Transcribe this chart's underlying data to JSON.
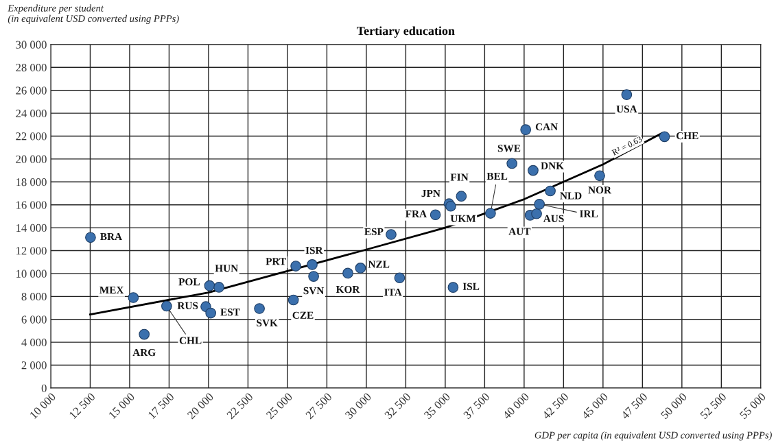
{
  "chart_data": {
    "type": "scatter",
    "title": "Tertiary education",
    "xlabel": "GDP per capita (in equivalent USD converted using PPPs)",
    "ylabel": "Expenditure per student\n(in equivalent USD converted using PPPs)",
    "series": [
      {
        "marker": "circle",
        "color": "#3b70ad",
        "x": [
          12520,
          15235,
          15924,
          17345,
          20065,
          20660,
          19830,
          20140,
          23225,
          25380,
          25530,
          26570,
          26660,
          28830,
          29630,
          31570,
          32110,
          35500,
          34380,
          35240,
          35350,
          36020,
          37870,
          39230,
          40100,
          40570,
          40380,
          40790,
          40970,
          41660,
          44790,
          46500,
          48900
        ],
        "values": [
          13150,
          7900,
          4690,
          7150,
          8940,
          8800,
          7110,
          6550,
          6940,
          7690,
          10650,
          10780,
          9750,
          10030,
          10480,
          13410,
          9620,
          8790,
          15130,
          16090,
          15880,
          16750,
          15260,
          19610,
          22560,
          19000,
          15090,
          15220,
          16050,
          17210,
          18540,
          25620,
          21950
        ]
      },
      {
        "type": "line",
        "marker": "none",
        "color": "#000000",
        "x": [
          12500,
          20000,
          30000,
          35000,
          40000,
          45000,
          48700
        ],
        "values": [
          6430,
          8340,
          12090,
          14000,
          16490,
          19530,
          22230
        ]
      }
    ],
    "annotations": [
      {
        "text": "BRA",
        "x": 12520,
        "y": 13150
      },
      {
        "text": "MEX",
        "x": 15235,
        "y": 7900
      },
      {
        "text": "ARG",
        "x": 15924,
        "y": 4690
      },
      {
        "text": "CHL",
        "x": 17345,
        "y": 7150
      },
      {
        "text": "POL",
        "x": 20065,
        "y": 8940
      },
      {
        "text": "HUN",
        "x": 20660,
        "y": 8800
      },
      {
        "text": "RUS",
        "x": 19830,
        "y": 7110
      },
      {
        "text": "EST",
        "x": 20140,
        "y": 6550
      },
      {
        "text": "SVK",
        "x": 23225,
        "y": 6940
      },
      {
        "text": "CZE",
        "x": 25380,
        "y": 7690
      },
      {
        "text": "PRT",
        "x": 25530,
        "y": 10650
      },
      {
        "text": "ISR",
        "x": 26570,
        "y": 10780
      },
      {
        "text": "SVN",
        "x": 26660,
        "y": 9750
      },
      {
        "text": "KOR",
        "x": 28830,
        "y": 10030
      },
      {
        "text": "NZL",
        "x": 29630,
        "y": 10480
      },
      {
        "text": "ESP",
        "x": 31570,
        "y": 13410
      },
      {
        "text": "ITA",
        "x": 32110,
        "y": 9620
      },
      {
        "text": "ISL",
        "x": 35500,
        "y": 8790
      },
      {
        "text": "FRA",
        "x": 34380,
        "y": 15130
      },
      {
        "text": "JPN",
        "x": 35240,
        "y": 16090
      },
      {
        "text": "UKM",
        "x": 35350,
        "y": 15880
      },
      {
        "text": "FIN",
        "x": 36020,
        "y": 16750
      },
      {
        "text": "BEL",
        "x": 37870,
        "y": 15260
      },
      {
        "text": "SWE",
        "x": 39230,
        "y": 19610
      },
      {
        "text": "CAN",
        "x": 40100,
        "y": 22560
      },
      {
        "text": "DNK",
        "x": 40570,
        "y": 19000
      },
      {
        "text": "AUT",
        "x": 40380,
        "y": 15090
      },
      {
        "text": "AUS",
        "x": 40790,
        "y": 15220
      },
      {
        "text": "IRL",
        "x": 40970,
        "y": 16050
      },
      {
        "text": "NLD",
        "x": 41660,
        "y": 17210
      },
      {
        "text": "NOR",
        "x": 44790,
        "y": 18540
      },
      {
        "text": "USA",
        "x": 46500,
        "y": 25620
      },
      {
        "text": "CHE",
        "x": 48900,
        "y": 21950
      },
      {
        "text": "R² = 0.63",
        "x": 46300,
        "y": 20600
      }
    ],
    "xlim": [
      10000,
      55000
    ],
    "xticks": [
      {
        "value": 10000,
        "label": "10 000"
      },
      {
        "value": 12500,
        "label": "12 500"
      },
      {
        "value": 15000,
        "label": "15 000"
      },
      {
        "value": 17500,
        "label": "17 500"
      },
      {
        "value": 20000,
        "label": "20 000"
      },
      {
        "value": 22500,
        "label": "22 500"
      },
      {
        "value": 25000,
        "label": "25 000"
      },
      {
        "value": 27500,
        "label": "27 500"
      },
      {
        "value": 30000,
        "label": "30 000"
      },
      {
        "value": 32500,
        "label": "32 500"
      },
      {
        "value": 35000,
        "label": "35 000"
      },
      {
        "value": 37500,
        "label": "37 500"
      },
      {
        "value": 40000,
        "label": "40 000"
      },
      {
        "value": 42500,
        "label": "42 500"
      },
      {
        "value": 45000,
        "label": "45 000"
      },
      {
        "value": 47500,
        "label": "47 500"
      },
      {
        "value": 50000,
        "label": "50 000"
      },
      {
        "value": 52500,
        "label": "52 500"
      },
      {
        "value": 55000,
        "label": "55 000"
      }
    ],
    "ylim": [
      0,
      30000
    ],
    "yticks": [
      0,
      {
        "value": 2000,
        "label": "2 000"
      },
      {
        "value": 4000,
        "label": "4 000"
      },
      {
        "value": 6000,
        "label": "6 000"
      },
      {
        "value": 8000,
        "label": "8 000"
      },
      {
        "value": 10000,
        "label": "10 000"
      },
      {
        "value": 12000,
        "label": "12 000"
      },
      {
        "value": 14000,
        "label": "14 000"
      },
      {
        "value": 16000,
        "label": "16 000"
      },
      {
        "value": 18000,
        "label": "18 000"
      },
      {
        "value": 20000,
        "label": "20 000"
      },
      {
        "value": 22000,
        "label": "22 000"
      },
      {
        "value": 24000,
        "label": "24 000"
      },
      {
        "value": 26000,
        "label": "26 000"
      },
      {
        "value": 28000,
        "label": "28 000"
      },
      {
        "value": 30000,
        "label": "30 000"
      }
    ],
    "grid": true,
    "line_style": "solid"
  }
}
